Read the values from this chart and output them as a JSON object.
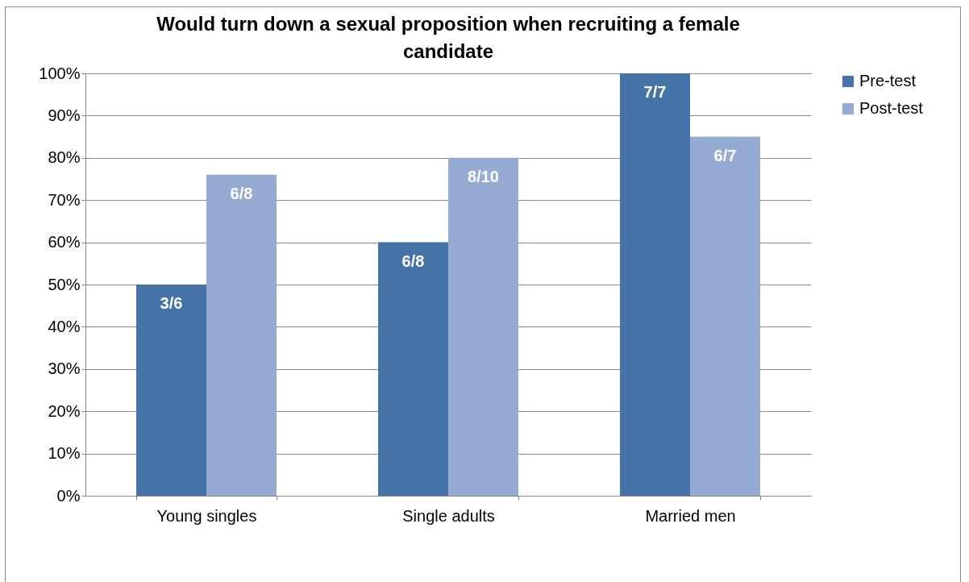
{
  "chart_data": {
    "type": "bar",
    "title": "Would turn down a sexual proposition when recruiting a female candidate",
    "categories": [
      "Young singles",
      "Single adults",
      "Married men"
    ],
    "series": [
      {
        "name": "Pre-test",
        "color": "#4573a7",
        "values": [
          50,
          60,
          100
        ]
      },
      {
        "name": "Post-test",
        "color": "#95abd3",
        "values": [
          76,
          80,
          85
        ]
      }
    ],
    "annotations": [
      {
        "text": "3/6",
        "x": "Young singles",
        "y": 50
      },
      {
        "text": "6/8",
        "x": "Single adults",
        "y": 60
      },
      {
        "text": "7/7",
        "x": "Married men",
        "y": 100
      },
      {
        "text": "6/8",
        "x": "Young singles",
        "y": 76
      },
      {
        "text": "8/10",
        "x": "Single adults",
        "y": 80
      },
      {
        "text": "6/7",
        "x": "Married men",
        "y": 85
      }
    ],
    "ylim": [
      0,
      100
    ],
    "yticks": [
      {
        "value": 0,
        "label": "0%"
      },
      {
        "value": 10,
        "label": "10%"
      },
      {
        "value": 20,
        "label": "20%"
      },
      {
        "value": 30,
        "label": "30%"
      },
      {
        "value": 40,
        "label": "40%"
      },
      {
        "value": 50,
        "label": "50%"
      },
      {
        "value": 60,
        "label": "60%"
      },
      {
        "value": 70,
        "label": "70%"
      },
      {
        "value": 80,
        "label": "80%"
      },
      {
        "value": 90,
        "label": "90%"
      },
      {
        "value": 100,
        "label": "100%"
      }
    ],
    "grid": "y",
    "legend": "right"
  }
}
